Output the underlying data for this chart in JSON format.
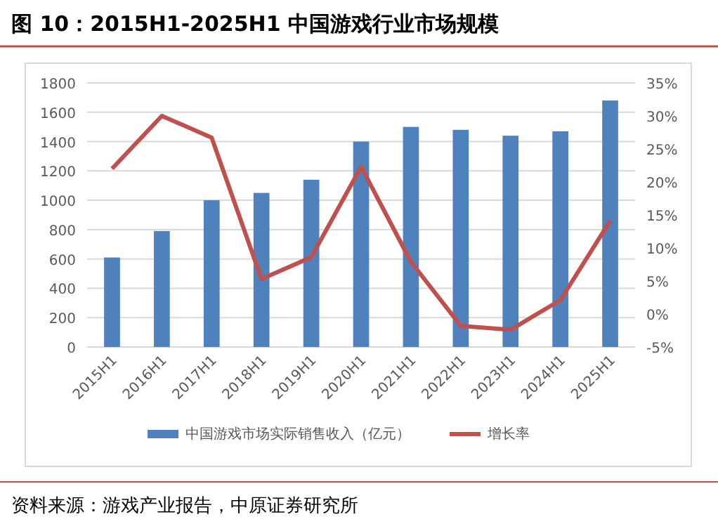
{
  "chart_data": {
    "type": "bar",
    "title": "图 10：2015H1-2025H1 中国游戏行业市场规模",
    "categories": [
      "2015H1",
      "2016H1",
      "2017H1",
      "2018H1",
      "2019H1",
      "2020H1",
      "2021H1",
      "2022H1",
      "2023H1",
      "2024H1",
      "2025H1"
    ],
    "series": [
      {
        "name": "中国游戏市场实际销售收入（亿元）",
        "color": "#4f81bd",
        "values": [
          610,
          790,
          1000,
          1050,
          1140,
          1400,
          1500,
          1480,
          1440,
          1470,
          1680
        ]
      },
      {
        "name": "增长率",
        "type": "line",
        "axis": "y2",
        "color": "#c0504d",
        "values": [
          22,
          30,
          26.7,
          5.3,
          8.6,
          22.3,
          7.9,
          -1.8,
          -2.4,
          2.1,
          14.1
        ]
      }
    ],
    "ylim": [
      0,
      1800
    ],
    "yticks": [
      0,
      200,
      400,
      600,
      800,
      1000,
      1200,
      1400,
      1600,
      1800
    ],
    "y2lim": [
      -5,
      35
    ],
    "y2ticks": [
      {
        "value": -5,
        "label": "-5%"
      },
      {
        "value": 0,
        "label": "0%"
      },
      {
        "value": 5,
        "label": "5%"
      },
      {
        "value": 10,
        "label": "10%"
      },
      {
        "value": 15,
        "label": "15%"
      },
      {
        "value": 20,
        "label": "20%"
      },
      {
        "value": 25,
        "label": "25%"
      },
      {
        "value": 30,
        "label": "30%"
      },
      {
        "value": 35,
        "label": "35%"
      }
    ],
    "grid": "y",
    "legend": "bottom",
    "marker": "none",
    "annotations": [
      "资料来源：游戏产业报告，中原证券研究所"
    ]
  }
}
